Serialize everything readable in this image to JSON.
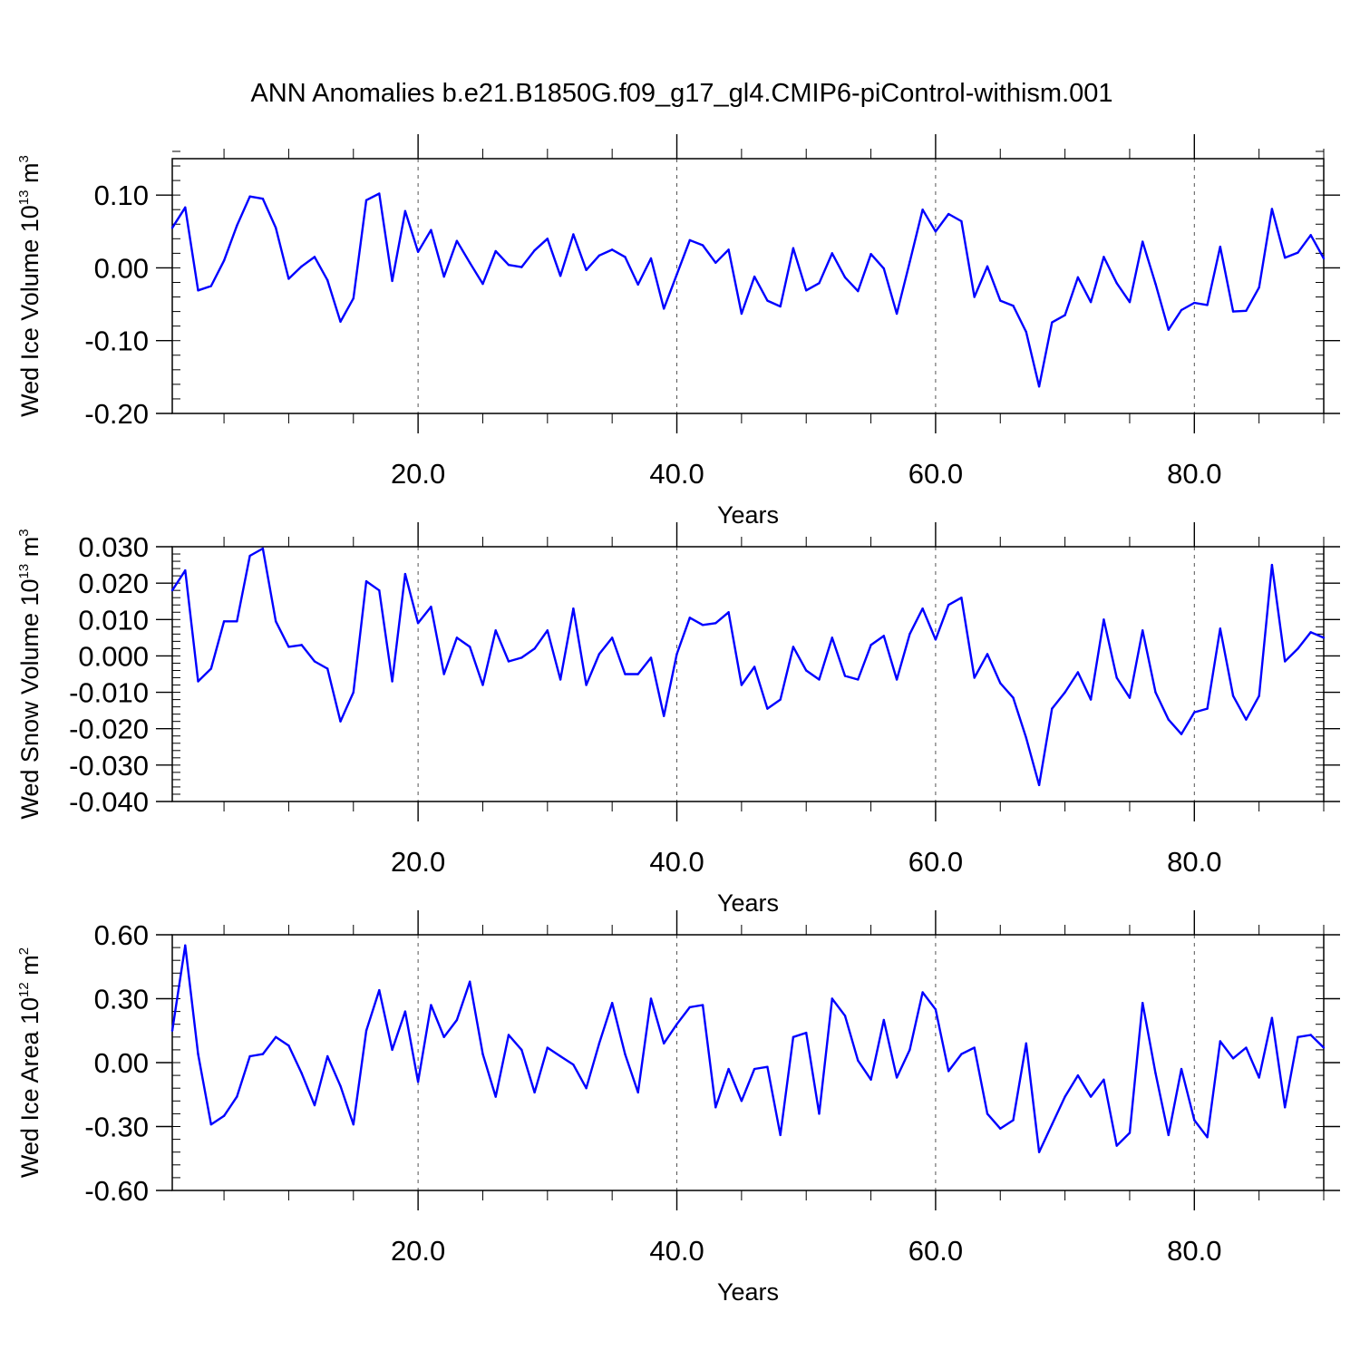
{
  "title": "ANN Anomalies b.e21.B1850G.f09_g17_gl4.CMIP6-piControl-withism.001",
  "colors": {
    "line": "#0000ff",
    "axis": "#000000",
    "grid": "#555555",
    "background": "#ffffff"
  },
  "chart_data": [
    {
      "type": "line",
      "ylabel_main": "Wed Ice Volume 10",
      "ylabel_exp": "13",
      "ylabel_unit": " m",
      "ylabel_unit_exp": "3",
      "xlabel": "Years",
      "xlim": [
        1,
        90
      ],
      "ylim": [
        -0.2,
        0.15
      ],
      "x_ticks": [
        20,
        40,
        60,
        80
      ],
      "x_tick_labels": [
        "20.0",
        "40.0",
        "60.0",
        "80.0"
      ],
      "y_ticks": [
        -0.2,
        -0.1,
        0.0,
        0.1
      ],
      "y_tick_labels": [
        "-0.20",
        "-0.10",
        "0.00",
        "0.10"
      ],
      "y_minor_step": 0.02,
      "grid": "vertical dashed at major x ticks",
      "x": [
        1,
        2,
        3,
        4,
        5,
        6,
        7,
        8,
        9,
        10,
        11,
        12,
        13,
        14,
        15,
        16,
        17,
        18,
        19,
        20,
        21,
        22,
        23,
        24,
        25,
        26,
        27,
        28,
        29,
        30,
        31,
        32,
        33,
        34,
        35,
        36,
        37,
        38,
        39,
        40,
        41,
        42,
        43,
        44,
        45,
        46,
        47,
        48,
        49,
        50,
        51,
        52,
        53,
        54,
        55,
        56,
        57,
        58,
        59,
        60,
        61,
        62,
        63,
        64,
        65,
        66,
        67,
        68,
        69,
        70,
        71,
        72,
        73,
        74,
        75,
        76,
        77,
        78,
        79,
        80,
        81,
        82,
        83,
        84,
        85,
        86,
        87,
        88,
        89,
        90
      ],
      "values": [
        0.055,
        0.083,
        -0.031,
        -0.025,
        0.01,
        0.058,
        0.098,
        0.095,
        0.055,
        -0.015,
        0.002,
        0.015,
        -0.017,
        -0.074,
        -0.042,
        0.093,
        0.102,
        -0.018,
        0.078,
        0.022,
        0.052,
        -0.012,
        0.037,
        0.007,
        -0.022,
        0.023,
        0.004,
        0.001,
        0.024,
        0.04,
        -0.011,
        0.046,
        -0.003,
        0.017,
        0.025,
        0.015,
        -0.023,
        0.013,
        -0.056,
        -0.009,
        0.038,
        0.031,
        0.007,
        0.025,
        -0.063,
        -0.012,
        -0.045,
        -0.053,
        0.027,
        -0.031,
        -0.021,
        0.02,
        -0.013,
        -0.032,
        0.019,
        -0.001,
        -0.063,
        0.008,
        0.08,
        0.05,
        0.074,
        0.064,
        -0.04,
        0.002,
        -0.045,
        -0.052,
        -0.088,
        -0.163,
        -0.075,
        -0.065,
        -0.013,
        -0.047,
        0.015,
        -0.021,
        -0.047,
        0.036,
        -0.022,
        -0.085,
        -0.058,
        -0.048,
        -0.051,
        0.029,
        -0.06,
        -0.059,
        -0.027,
        0.081,
        0.014,
        0.021,
        0.045,
        0.013
      ]
    },
    {
      "type": "line",
      "ylabel_main": "Wed Snow Volume 10",
      "ylabel_exp": "13",
      "ylabel_unit": " m",
      "ylabel_unit_exp": "3",
      "xlabel": "Years",
      "xlim": [
        1,
        90
      ],
      "ylim": [
        -0.04,
        0.03
      ],
      "x_ticks": [
        20,
        40,
        60,
        80
      ],
      "x_tick_labels": [
        "20.0",
        "40.0",
        "60.0",
        "80.0"
      ],
      "y_ticks": [
        -0.04,
        -0.03,
        -0.02,
        -0.01,
        0.0,
        0.01,
        0.02,
        0.03
      ],
      "y_tick_labels": [
        "-0.040",
        "-0.030",
        "-0.020",
        "-0.010",
        "0.000",
        "0.010",
        "0.020",
        "0.030"
      ],
      "y_minor_step": 0.002,
      "grid": "vertical dashed at major x ticks",
      "x": [
        1,
        2,
        3,
        4,
        5,
        6,
        7,
        8,
        9,
        10,
        11,
        12,
        13,
        14,
        15,
        16,
        17,
        18,
        19,
        20,
        21,
        22,
        23,
        24,
        25,
        26,
        27,
        28,
        29,
        30,
        31,
        32,
        33,
        34,
        35,
        36,
        37,
        38,
        39,
        40,
        41,
        42,
        43,
        44,
        45,
        46,
        47,
        48,
        49,
        50,
        51,
        52,
        53,
        54,
        55,
        56,
        57,
        58,
        59,
        60,
        61,
        62,
        63,
        64,
        65,
        66,
        67,
        68,
        69,
        70,
        71,
        72,
        73,
        74,
        75,
        76,
        77,
        78,
        79,
        80,
        81,
        82,
        83,
        84,
        85,
        86,
        87,
        88,
        89,
        90
      ],
      "values": [
        0.018,
        0.0235,
        -0.007,
        -0.0035,
        0.0095,
        0.0095,
        0.0275,
        0.0295,
        0.0095,
        0.0025,
        0.003,
        -0.0015,
        -0.0035,
        -0.018,
        -0.01,
        0.0205,
        0.018,
        -0.007,
        0.0225,
        0.009,
        0.0135,
        -0.005,
        0.005,
        0.0025,
        -0.008,
        0.007,
        -0.0015,
        -0.0005,
        0.002,
        0.007,
        -0.0065,
        0.013,
        -0.008,
        0.0005,
        0.005,
        -0.005,
        -0.005,
        -0.0005,
        -0.0165,
        0.0005,
        0.0105,
        0.0085,
        0.009,
        0.012,
        -0.008,
        -0.003,
        -0.0145,
        -0.012,
        0.0025,
        -0.004,
        -0.0065,
        0.005,
        -0.0055,
        -0.0065,
        0.003,
        0.0055,
        -0.0065,
        0.006,
        0.013,
        0.0045,
        0.014,
        0.016,
        -0.006,
        0.0005,
        -0.0075,
        -0.0115,
        -0.0225,
        -0.0355,
        -0.0145,
        -0.01,
        -0.0045,
        -0.012,
        0.01,
        -0.006,
        -0.0115,
        0.007,
        -0.01,
        -0.0175,
        -0.0215,
        -0.0155,
        -0.0145,
        0.0075,
        -0.011,
        -0.0175,
        -0.011,
        0.025,
        -0.0015,
        0.002,
        0.0065,
        0.005
      ]
    },
    {
      "type": "line",
      "ylabel_main": "Wed Ice Area 10",
      "ylabel_exp": "12",
      "ylabel_unit": " m",
      "ylabel_unit_exp": "2",
      "xlabel": "Years",
      "xlim": [
        1,
        90
      ],
      "ylim": [
        -0.6,
        0.6
      ],
      "x_ticks": [
        20,
        40,
        60,
        80
      ],
      "x_tick_labels": [
        "20.0",
        "40.0",
        "60.0",
        "80.0"
      ],
      "y_ticks": [
        -0.6,
        -0.3,
        0.0,
        0.3,
        0.6
      ],
      "y_tick_labels": [
        "-0.60",
        "-0.30",
        "0.00",
        "0.30",
        "0.60"
      ],
      "y_minor_step": 0.06,
      "grid": "vertical dashed at major x ticks",
      "x": [
        1,
        2,
        3,
        4,
        5,
        6,
        7,
        8,
        9,
        10,
        11,
        12,
        13,
        14,
        15,
        16,
        17,
        18,
        19,
        20,
        21,
        22,
        23,
        24,
        25,
        26,
        27,
        28,
        29,
        30,
        31,
        32,
        33,
        34,
        35,
        36,
        37,
        38,
        39,
        40,
        41,
        42,
        43,
        44,
        45,
        46,
        47,
        48,
        49,
        50,
        51,
        52,
        53,
        54,
        55,
        56,
        57,
        58,
        59,
        60,
        61,
        62,
        63,
        64,
        65,
        66,
        67,
        68,
        69,
        70,
        71,
        72,
        73,
        74,
        75,
        76,
        77,
        78,
        79,
        80,
        81,
        82,
        83,
        84,
        85,
        86,
        87,
        88,
        89,
        90
      ],
      "values": [
        0.15,
        0.55,
        0.04,
        -0.29,
        -0.25,
        -0.16,
        0.03,
        0.04,
        0.12,
        0.08,
        -0.05,
        -0.2,
        0.03,
        -0.11,
        -0.29,
        0.15,
        0.34,
        0.06,
        0.24,
        -0.09,
        0.27,
        0.12,
        0.2,
        0.38,
        0.04,
        -0.16,
        0.13,
        0.06,
        -0.14,
        0.07,
        0.03,
        -0.01,
        -0.12,
        0.09,
        0.28,
        0.04,
        -0.14,
        0.3,
        0.09,
        0.18,
        0.26,
        0.27,
        -0.21,
        -0.03,
        -0.18,
        -0.03,
        -0.02,
        -0.34,
        0.12,
        0.14,
        -0.24,
        0.3,
        0.22,
        0.01,
        -0.08,
        0.2,
        -0.07,
        0.06,
        0.33,
        0.25,
        -0.04,
        0.04,
        0.07,
        -0.24,
        -0.31,
        -0.27,
        0.09,
        -0.42,
        -0.29,
        -0.16,
        -0.06,
        -0.16,
        -0.08,
        -0.39,
        -0.33,
        0.28,
        -0.05,
        -0.34,
        -0.03,
        -0.27,
        -0.35,
        0.1,
        0.02,
        0.07,
        -0.07,
        0.21,
        -0.21,
        0.12,
        0.13,
        0.07
      ]
    }
  ]
}
